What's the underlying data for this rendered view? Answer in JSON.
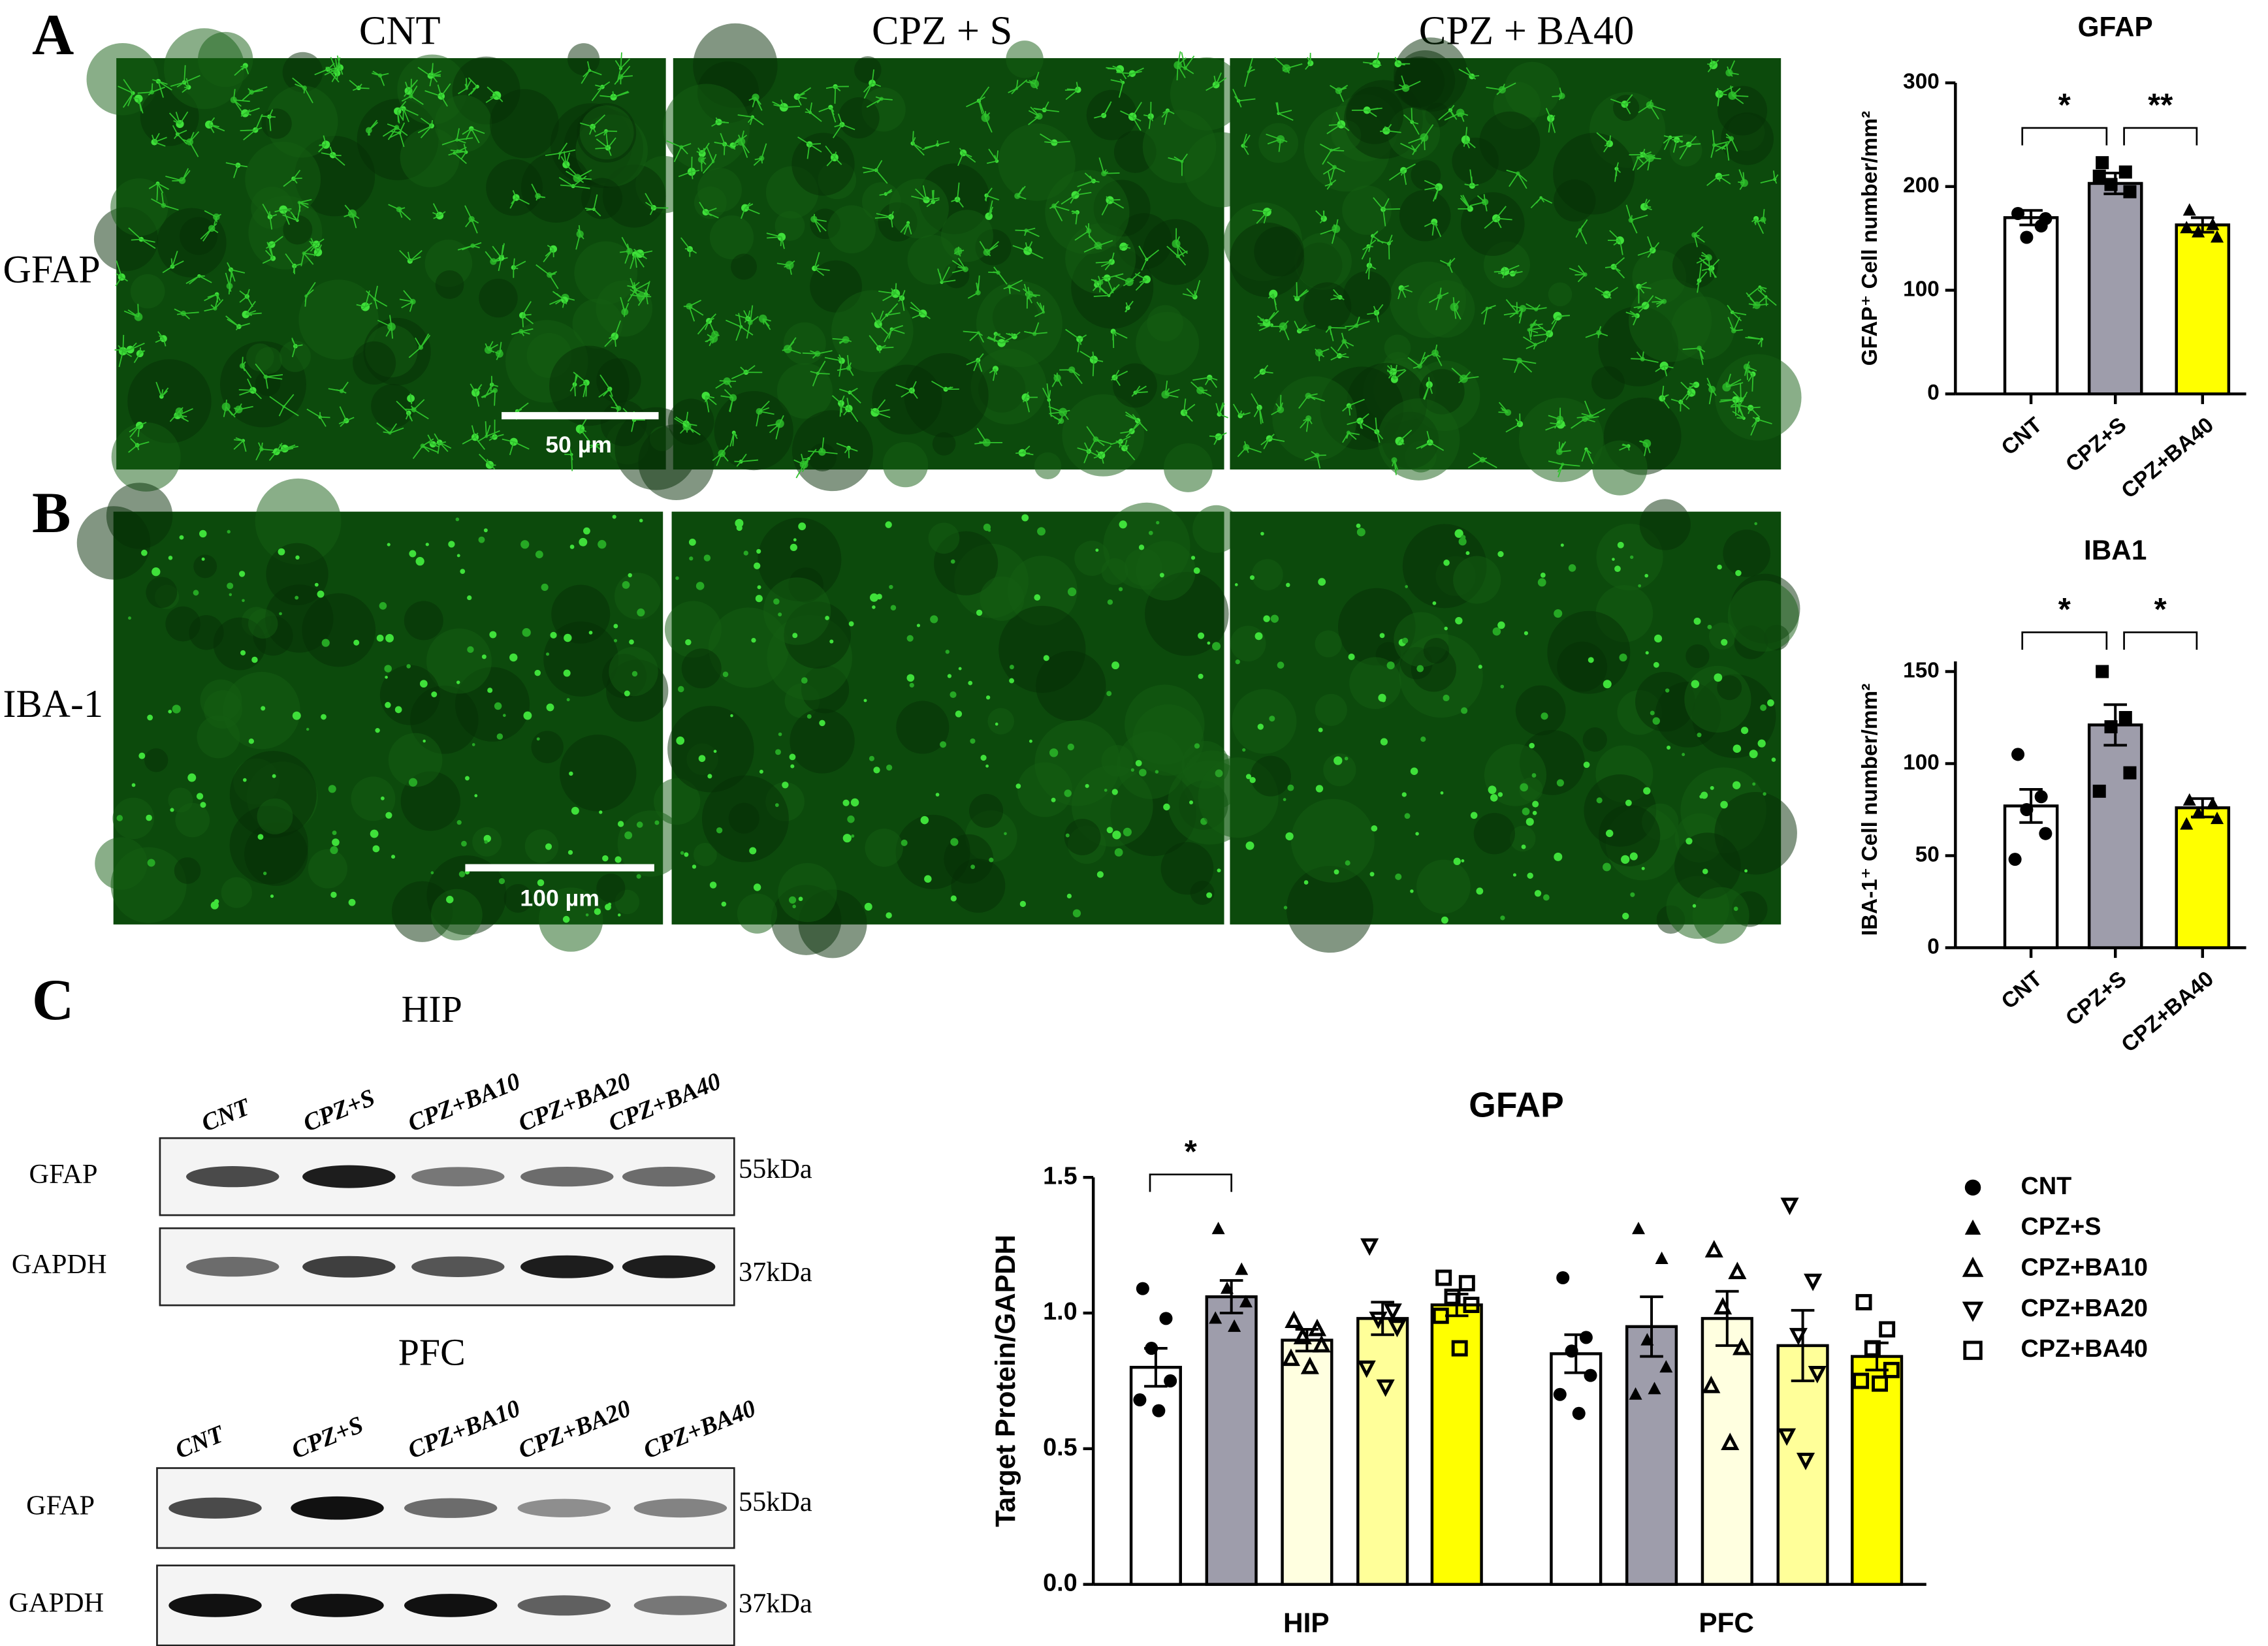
{
  "panels": [
    "A",
    "B",
    "C"
  ],
  "micrographs": {
    "columns": [
      "CNT",
      "CPZ + S",
      "CPZ + BA40"
    ],
    "rows": [
      "GFAP",
      "IBA-1"
    ],
    "scale_bars": [
      "50 µm",
      "100 µm"
    ]
  },
  "western_blots": [
    {
      "region": "HIP",
      "lanes": [
        "CNT",
        "CPZ+S",
        "CPZ+BA10",
        "CPZ+BA20",
        "CPZ+BA40"
      ],
      "proteins": [
        "GFAP",
        "GAPDH"
      ],
      "sizes": [
        "55kDa",
        "37kDa"
      ]
    },
    {
      "region": "PFC",
      "lanes": [
        "CNT",
        "CPZ+S",
        "CPZ+BA10",
        "CPZ+BA20",
        "CPZ+BA40"
      ],
      "proteins": [
        "GFAP",
        "GAPDH"
      ],
      "sizes": [
        "55kDa",
        "37kDa"
      ]
    }
  ],
  "chart_data": [
    {
      "type": "bar",
      "title": "GFAP",
      "ylabel": "GFAP⁺ Cell number/mm²",
      "categories": [
        "CNT",
        "CPZ+S",
        "CPZ+BA40"
      ],
      "values": [
        170,
        203,
        163
      ],
      "errors": [
        7,
        10,
        7
      ],
      "points": [
        [
          174,
          162,
          151,
          169
        ],
        [
          223,
          214,
          202,
          195,
          210
        ],
        [
          177,
          163,
          156,
          151,
          160
        ]
      ],
      "colors": [
        "#ffffff",
        "#9e9dab",
        "#ffff00"
      ],
      "markers": [
        "circle",
        "square",
        "triangle"
      ],
      "ylim": [
        0,
        300
      ],
      "yticks": [
        0,
        100,
        200,
        300
      ],
      "significance": [
        {
          "label": "*",
          "groups": [
            "CNT",
            "CPZ+S"
          ]
        },
        {
          "label": "**",
          "groups": [
            "CPZ+S",
            "CPZ+BA40"
          ]
        }
      ]
    },
    {
      "type": "bar",
      "title": "IBA1",
      "ylabel": "IBA-1⁺ Cell number/mm²",
      "categories": [
        "CNT",
        "CPZ+S",
        "CPZ+BA40"
      ],
      "values": [
        77,
        121,
        76
      ],
      "errors": [
        9,
        11,
        5
      ],
      "points": [
        [
          105,
          82,
          75,
          62,
          48
        ],
        [
          150,
          125,
          120,
          95,
          85
        ],
        [
          80,
          78,
          73,
          70,
          67
        ]
      ],
      "colors": [
        "#ffffff",
        "#9e9dab",
        "#ffff00"
      ],
      "markers": [
        "circle",
        "square",
        "triangle"
      ],
      "ylim": [
        0,
        150
      ],
      "yticks": [
        0,
        50,
        100,
        150
      ],
      "significance": [
        {
          "label": "*",
          "groups": [
            "CNT",
            "CPZ+S"
          ]
        },
        {
          "label": "*",
          "groups": [
            "CPZ+S",
            "CPZ+BA40"
          ]
        }
      ]
    },
    {
      "type": "bar",
      "title": "GFAP",
      "ylabel": "Target Protein/GAPDH",
      "categories": [
        "HIP",
        "PFC"
      ],
      "series": [
        {
          "name": "CNT",
          "color": "#ffffff",
          "marker": "circle",
          "values": [
            0.8,
            0.85
          ],
          "errors": [
            0.07,
            0.07
          ],
          "points": [
            [
              1.09,
              0.98,
              0.87,
              0.75,
              0.68,
              0.64
            ],
            [
              1.13,
              0.91,
              0.86,
              0.77,
              0.7,
              0.63
            ]
          ]
        },
        {
          "name": "CPZ+S",
          "color": "#9e9dab",
          "marker": "triangle",
          "values": [
            1.06,
            0.95
          ],
          "errors": [
            0.06,
            0.11
          ],
          "points": [
            [
              1.31,
              1.16,
              1.09,
              1.04,
              0.98,
              0.95
            ],
            [
              1.31,
              1.2,
              0.9,
              0.8,
              0.7,
              0.72
            ]
          ]
        },
        {
          "name": "CPZ+BA10",
          "color": "#ffffe0",
          "marker": "triangle-open",
          "values": [
            0.9,
            0.98
          ],
          "errors": [
            0.04,
            0.1
          ],
          "points": [
            [
              0.97,
              0.94,
              0.91,
              0.88,
              0.83,
              0.8
            ],
            [
              1.23,
              1.15,
              1.02,
              0.87,
              0.73,
              0.52
            ]
          ]
        },
        {
          "name": "CPZ+BA20",
          "color": "#ffff99",
          "marker": "triangle-down",
          "values": [
            0.98,
            0.88
          ],
          "errors": [
            0.06,
            0.13
          ],
          "points": [
            [
              1.25,
              1.01,
              0.98,
              0.95,
              0.8,
              0.73
            ],
            [
              1.4,
              1.12,
              0.92,
              0.78,
              0.55,
              0.46
            ]
          ]
        },
        {
          "name": "CPZ+BA40",
          "color": "#ffff00",
          "marker": "square",
          "values": [
            1.03,
            0.84
          ],
          "errors": [
            0.04,
            0.05
          ],
          "points": [
            [
              1.13,
              1.11,
              1.06,
              1.03,
              0.99,
              0.87
            ],
            [
              1.04,
              0.94,
              0.87,
              0.79,
              0.75,
              0.74
            ]
          ]
        }
      ],
      "ylim": [
        0,
        1.5
      ],
      "yticks": [
        {
          "value": 0,
          "label": "0.0"
        },
        0.5,
        {
          "value": 1,
          "label": "1.0"
        },
        1.5
      ],
      "significance": [
        {
          "label": "*",
          "category": "HIP",
          "groups": [
            "CNT",
            "CPZ+S"
          ]
        }
      ]
    }
  ]
}
